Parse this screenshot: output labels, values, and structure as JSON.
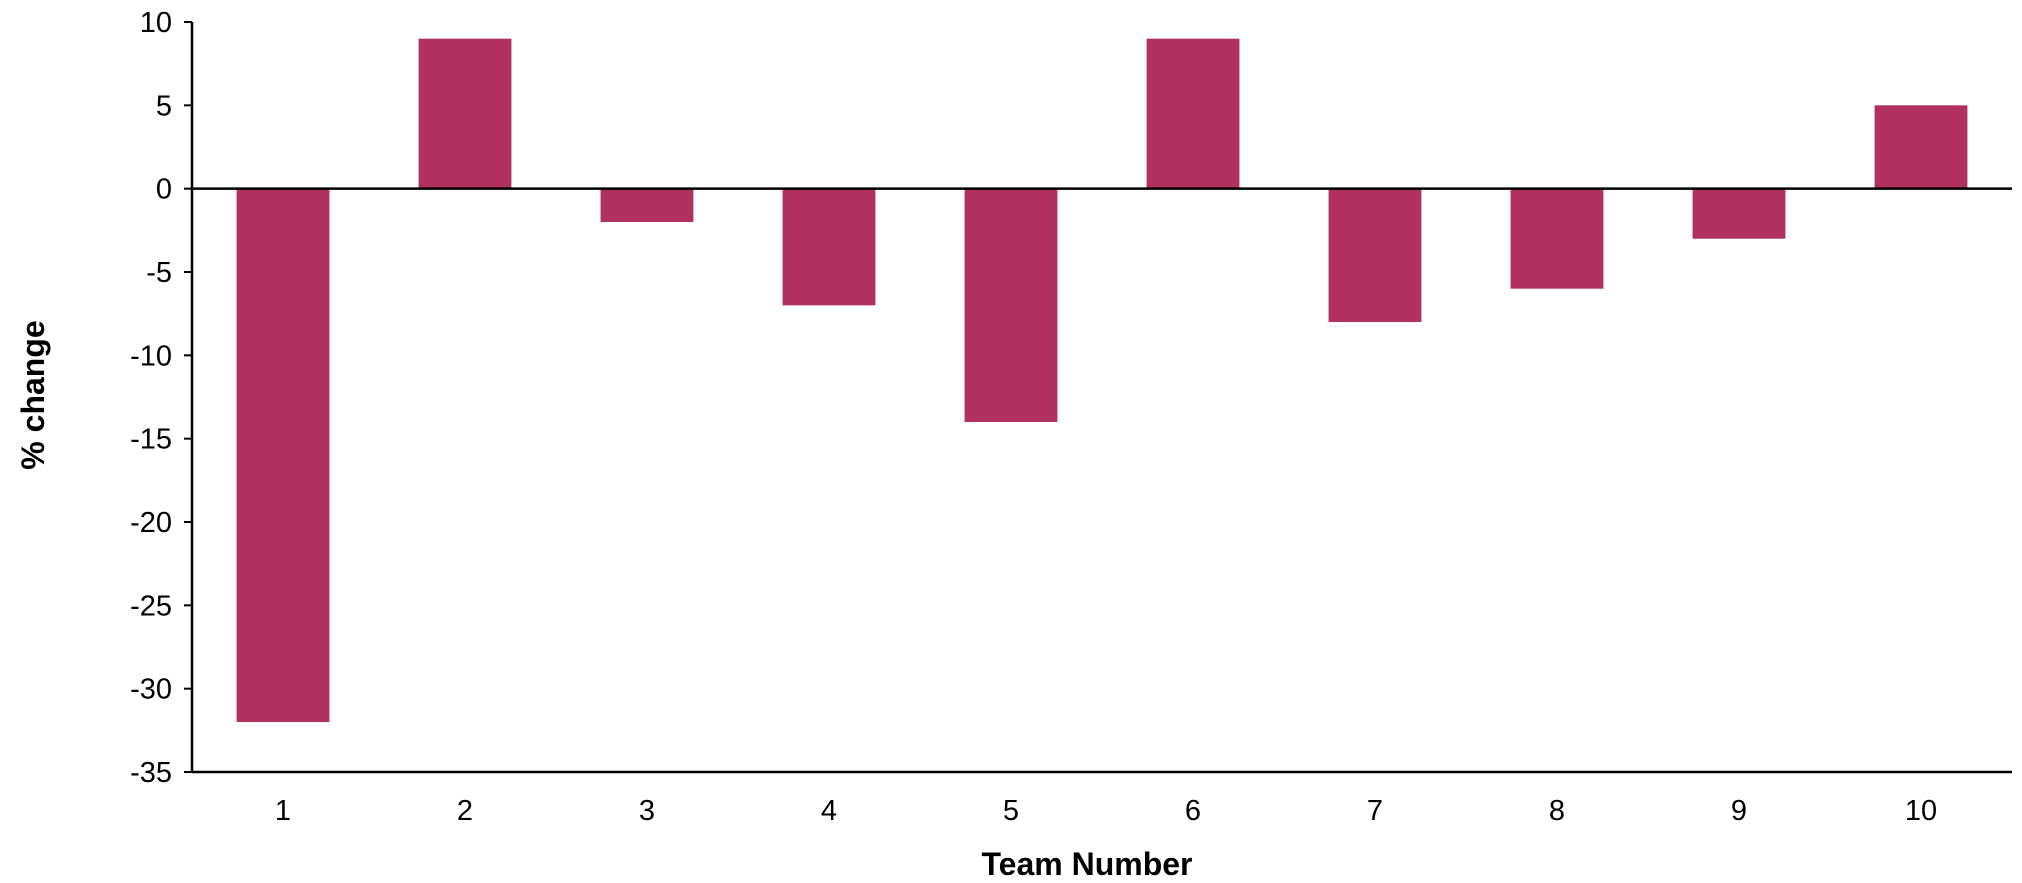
{
  "chart_data": {
    "type": "bar",
    "categories": [
      "1",
      "2",
      "3",
      "4",
      "5",
      "6",
      "7",
      "8",
      "9",
      "10"
    ],
    "values": [
      -32,
      9,
      -2,
      -7,
      -14,
      9,
      -8,
      -6,
      -3,
      5
    ],
    "title": "",
    "xlabel": "Team Number",
    "ylabel": "% change",
    "ylim": [
      -35,
      10
    ],
    "yticks": [
      "10",
      "5",
      "0",
      "-5",
      "-10",
      "-15",
      "-20",
      "-25",
      "-30",
      "-35"
    ],
    "grid": false,
    "legend": "none",
    "bar_color": "#B03060",
    "axis_color": "#000000"
  }
}
